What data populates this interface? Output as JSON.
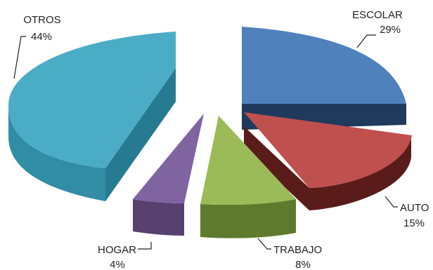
{
  "chart_data": {
    "type": "pie",
    "style": "3d-exploded",
    "title": "",
    "legend": "none",
    "slices": [
      {
        "label": "ESCOLAR",
        "value": 29,
        "display": "29%",
        "color": "#4F81BD",
        "side": "#2F4F7A",
        "dark": "#1F3A5C"
      },
      {
        "label": "AUTO",
        "value": 15,
        "display": "15%",
        "color": "#C0504D",
        "side": "#7A2A28",
        "dark": "#5A1C1A"
      },
      {
        "label": "TRABAJO",
        "value": 8,
        "display": "8%",
        "color": "#9BBB59",
        "side": "#5E7A2C",
        "dark": "#4A6221"
      },
      {
        "label": "HOGAR",
        "value": 4,
        "display": "4%",
        "color": "#8064A2",
        "side": "#56416F",
        "dark": "#443358"
      },
      {
        "label": "OTROS",
        "value": 44,
        "display": "44%",
        "color": "#4BACC6",
        "side": "#318CA6",
        "dark": "#267A92"
      }
    ]
  }
}
